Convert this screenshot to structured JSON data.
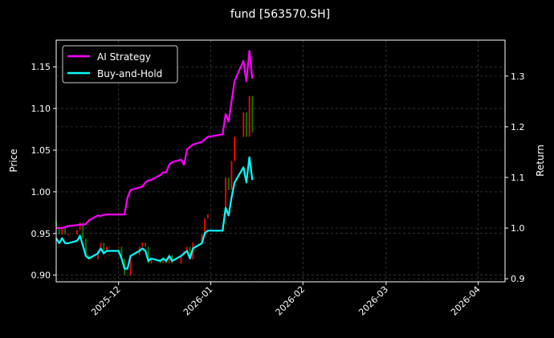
{
  "chart_data": {
    "type": "line",
    "title": "fund [563570.SH]",
    "ylabel_left": "Price",
    "ylabel_right": "Return",
    "xlabel": "",
    "xlim": [
      "2025-11-10",
      "2026-04-10"
    ],
    "ylim_left": [
      0.892,
      1.182
    ],
    "ylim_right": [
      0.894,
      1.371
    ],
    "x_ticks": [
      "2025-12",
      "2026-01",
      "2026-02",
      "2026-03",
      "2026-04"
    ],
    "x_tick_dates": [
      "2025-12-01",
      "2026-01-01",
      "2026-02-01",
      "2026-03-01",
      "2026-04-01"
    ],
    "y_ticks_left": [
      "0.90",
      "0.95",
      "1.00",
      "1.05",
      "1.10",
      "1.15"
    ],
    "y_ticks_right": [
      "0.9",
      "1.0",
      "1.1",
      "1.2",
      "1.3"
    ],
    "grid": true,
    "legend_position": "top-left",
    "background": "#000000",
    "candle_up_color": "#ff0000",
    "candle_down_color": "#008000",
    "dates": [
      "2025-11-10",
      "2025-11-11",
      "2025-11-12",
      "2025-11-13",
      "2025-11-14",
      "2025-11-17",
      "2025-11-18",
      "2025-11-19",
      "2025-11-20",
      "2025-11-21",
      "2025-11-24",
      "2025-11-25",
      "2025-11-26",
      "2025-11-27",
      "2025-11-28",
      "2025-12-01",
      "2025-12-02",
      "2025-12-03",
      "2025-12-04",
      "2025-12-05",
      "2025-12-08",
      "2025-12-09",
      "2025-12-10",
      "2025-12-11",
      "2025-12-12",
      "2025-12-15",
      "2025-12-16",
      "2025-12-17",
      "2025-12-18",
      "2025-12-19",
      "2025-12-22",
      "2025-12-23",
      "2025-12-24",
      "2025-12-25",
      "2025-12-26",
      "2025-12-29",
      "2025-12-30",
      "2025-12-31",
      "2026-01-05",
      "2026-01-06",
      "2026-01-07",
      "2026-01-08",
      "2026-01-09",
      "2026-01-12",
      "2026-01-13",
      "2026-01-14",
      "2026-01-15"
    ],
    "candles": {
      "open": [
        0.965,
        0.958,
        0.949,
        0.958,
        0.949,
        0.949,
        0.954,
        0.963,
        0.944,
        0.924,
        0.919,
        0.929,
        0.939,
        0.929,
        0.934,
        0.934,
        0.934,
        0.919,
        0.9,
        0.9,
        0.924,
        0.934,
        0.939,
        0.934,
        0.914,
        0.919,
        0.914,
        0.919,
        0.914,
        0.924,
        0.914,
        0.924,
        0.929,
        0.934,
        0.919,
        0.939,
        0.949,
        0.968,
        0.973,
        0.973,
        1.017,
        1.002,
        1.037,
        1.066,
        1.095,
        1.066,
        1.115
      ],
      "close": [
        0.958,
        0.949,
        0.958,
        0.949,
        0.949,
        0.954,
        0.963,
        0.944,
        0.924,
        0.919,
        0.929,
        0.939,
        0.929,
        0.934,
        0.934,
        0.934,
        0.919,
        0.9,
        0.9,
        0.924,
        0.934,
        0.939,
        0.934,
        0.914,
        0.919,
        0.914,
        0.919,
        0.914,
        0.924,
        0.914,
        0.924,
        0.929,
        0.934,
        0.919,
        0.939,
        0.949,
        0.968,
        0.973,
        0.973,
        1.017,
        1.002,
        1.037,
        1.066,
        1.095,
        1.066,
        1.115,
        1.071
      ]
    },
    "series": [
      {
        "name": "AI Strategy",
        "color": "#ff00ff",
        "axis": "right",
        "values": [
          1.0,
          1.0,
          1.0,
          1.002,
          1.004,
          1.006,
          1.007,
          1.007,
          1.008,
          1.015,
          1.025,
          1.024,
          1.026,
          1.027,
          1.027,
          1.027,
          1.027,
          1.027,
          1.06,
          1.075,
          1.08,
          1.082,
          1.09,
          1.094,
          1.095,
          1.105,
          1.11,
          1.11,
          1.125,
          1.13,
          1.135,
          1.125,
          1.155,
          1.16,
          1.165,
          1.17,
          1.175,
          1.18,
          1.185,
          1.225,
          1.21,
          1.25,
          1.29,
          1.33,
          1.29,
          1.35,
          1.295
        ]
      },
      {
        "name": "Buy-and-Hold",
        "color": "#00ffff",
        "axis": "right",
        "values": [
          0.98,
          0.97,
          0.98,
          0.97,
          0.97,
          0.975,
          0.985,
          0.965,
          0.945,
          0.94,
          0.95,
          0.96,
          0.95,
          0.955,
          0.955,
          0.955,
          0.94,
          0.92,
          0.92,
          0.945,
          0.955,
          0.96,
          0.955,
          0.935,
          0.94,
          0.935,
          0.94,
          0.935,
          0.945,
          0.935,
          0.945,
          0.95,
          0.955,
          0.94,
          0.96,
          0.97,
          0.99,
          0.995,
          0.995,
          1.04,
          1.025,
          1.06,
          1.09,
          1.12,
          1.09,
          1.14,
          1.095
        ]
      }
    ]
  }
}
